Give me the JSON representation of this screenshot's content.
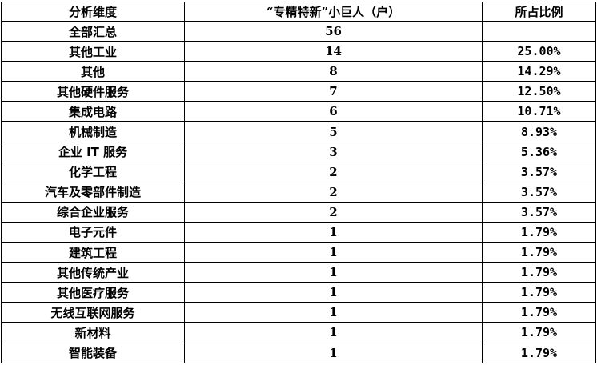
{
  "headers": [
    "分析维度",
    "“专精特新”小巨人（户）",
    "所占比例"
  ],
  "rows": [
    [
      "全部汇总",
      "56",
      ""
    ],
    [
      "其他工业",
      "14",
      "25.00%"
    ],
    [
      "其他",
      "8",
      "14.29%"
    ],
    [
      "其他硬件服务",
      "7",
      "12.50%"
    ],
    [
      "集成电路",
      "6",
      "10.71%"
    ],
    [
      "机械制造",
      "5",
      "8.93%"
    ],
    [
      "企业 IT 服务",
      "3",
      "5.36%"
    ],
    [
      "化学工程",
      "2",
      "3.57%"
    ],
    [
      "汽车及零部件制造",
      "2",
      "3.57%"
    ],
    [
      "综合企业服务",
      "2",
      "3.57%"
    ],
    [
      "电子元件",
      "1",
      "1.79%"
    ],
    [
      "建筑工程",
      "1",
      "1.79%"
    ],
    [
      "其他传统产业",
      "1",
      "1.79%"
    ],
    [
      "其他医疗服务",
      "1",
      "1.79%"
    ],
    [
      "无线互联网服务",
      "1",
      "1.79%"
    ],
    [
      "新材料",
      "1",
      "1.79%"
    ],
    [
      "智能装备",
      "1",
      "1.79%"
    ]
  ]
}
